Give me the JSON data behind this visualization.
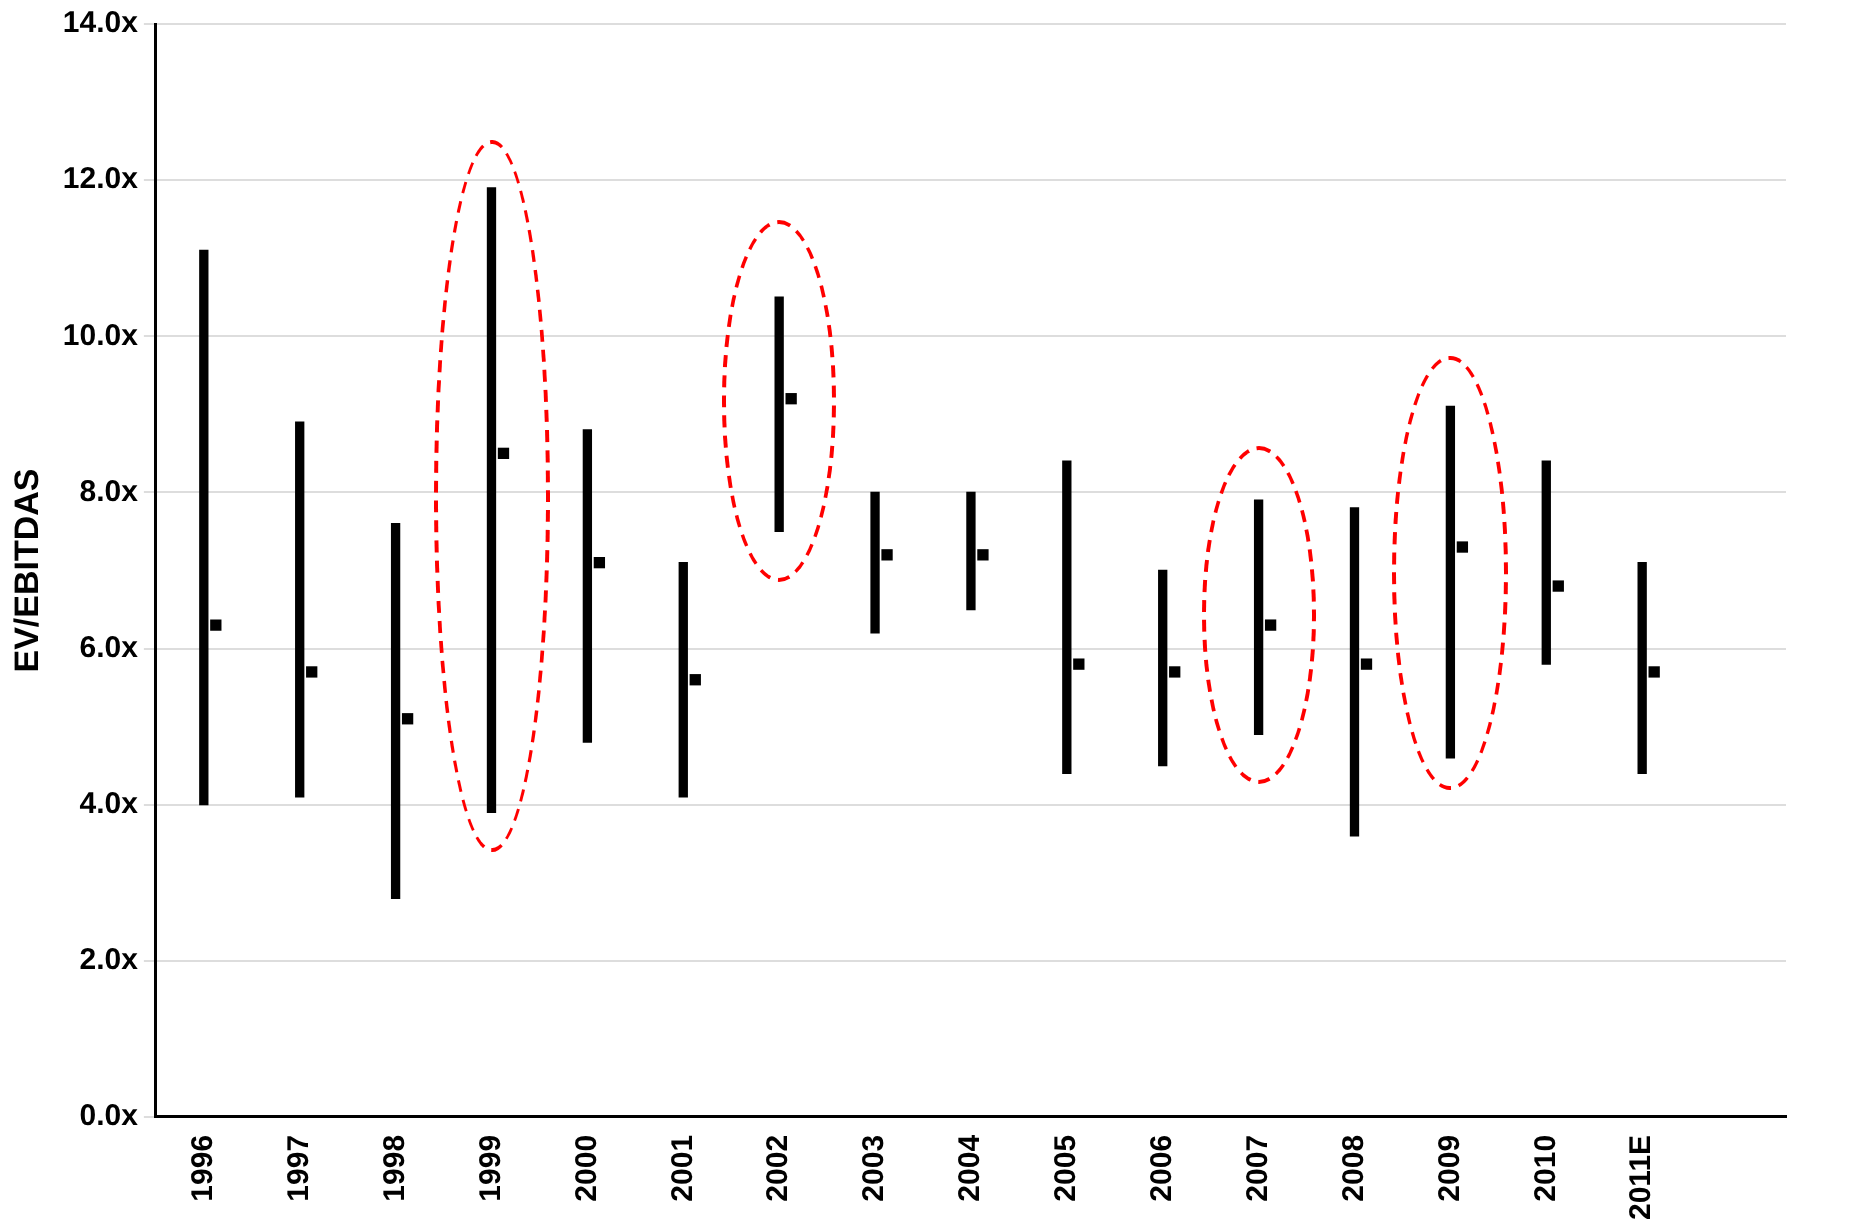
{
  "chart_data": {
    "type": "bar",
    "ylabel": "EV/EBITDAS",
    "categories": [
      "1996",
      "1997",
      "1998",
      "1999",
      "2000",
      "2001",
      "2002",
      "2003",
      "2004",
      "2005",
      "2006",
      "2007",
      "2008",
      "2009",
      "2010",
      "2011E",
      null
    ],
    "series": [
      {
        "color": "#000000",
        "base": [
          4.0,
          4.1,
          2.8,
          3.9,
          4.8,
          4.1,
          7.5,
          6.2,
          6.5,
          4.4,
          4.5,
          4.9,
          3.6,
          4.6,
          5.8,
          4.4,
          null
        ],
        "values": [
          7.1,
          4.8,
          4.8,
          8.0,
          4.0,
          3.0,
          3.0,
          1.8,
          1.5,
          4.0,
          2.5,
          3.0,
          4.2,
          4.5,
          2.6,
          2.7,
          null
        ]
      },
      {
        "type": "scatter",
        "color": "#000000",
        "marker": "square",
        "values": [
          6.3,
          5.7,
          5.1,
          8.5,
          7.1,
          5.6,
          9.2,
          7.2,
          7.2,
          5.8,
          5.7,
          6.3,
          5.8,
          7.3,
          6.8,
          5.7,
          null
        ]
      }
    ],
    "ylim": [
      0,
      14
    ],
    "yticks": [
      {
        "value": 0,
        "label": "0.0x"
      },
      {
        "value": 2,
        "label": "2.0x"
      },
      {
        "value": 4,
        "label": "4.0x"
      },
      {
        "value": 6,
        "label": "6.0x"
      },
      {
        "value": 8,
        "label": "8.0x"
      },
      {
        "value": 10,
        "label": "10.0x"
      },
      {
        "value": 12,
        "label": "12.0x"
      },
      {
        "value": 14,
        "label": "14.0x"
      }
    ],
    "grid": "y",
    "legend": false
  }
}
